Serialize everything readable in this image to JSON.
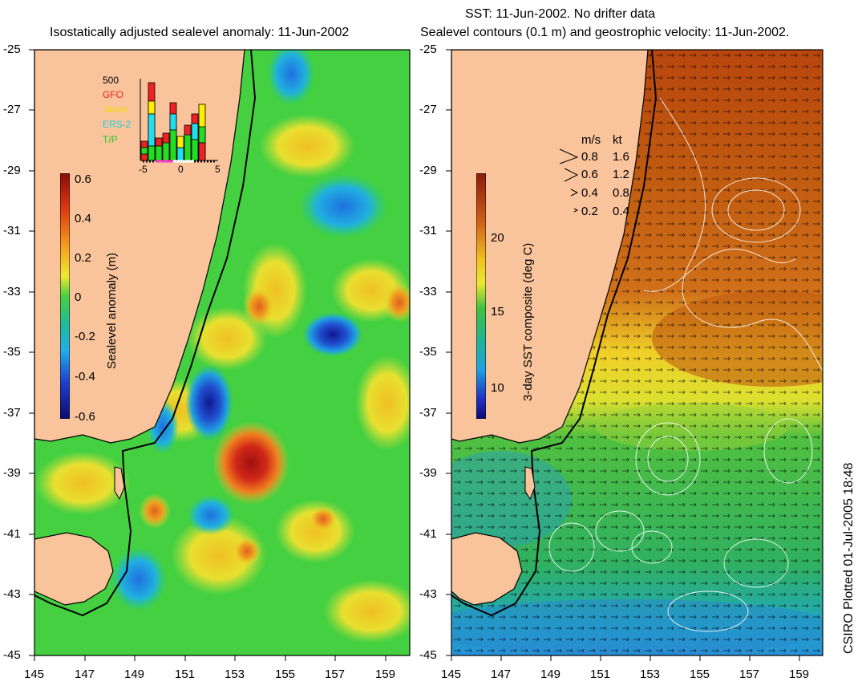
{
  "left_panel": {
    "title": "Isostatically adjusted sealevel anomaly: 11-Jun-2002",
    "colorbar_label": "Sealevel anomaly (m)",
    "colorbar_ticks": [
      "0.6",
      "0.4",
      "0.2",
      "0",
      "-0.2",
      "-0.4",
      "-0.6"
    ],
    "inset": {
      "max_label": "500",
      "satellites": [
        {
          "name": "GFO",
          "color": "#ee2222"
        },
        {
          "name": "Jason",
          "color": "#ffee00"
        },
        {
          "name": "ERS-2",
          "color": "#22ddee"
        },
        {
          "name": "T/P",
          "color": "#22dd22"
        }
      ],
      "x_ticks": [
        "-5",
        "0",
        "5"
      ]
    }
  },
  "right_panel": {
    "title_line1": "SST: 11-Jun-2002. No drifter data",
    "title_line2": "Sealevel contours (0.1 m) and geostrophic velocity: 11-Jun-2002.",
    "colorbar_label": "3-day SST composite (deg C)",
    "colorbar_ticks": [
      "20",
      "15",
      "10"
    ],
    "velocity_legend": {
      "header_ms": "m/s",
      "header_kt": "kt",
      "rows": [
        {
          "ms": "0.8",
          "kt": "1.6"
        },
        {
          "ms": "0.6",
          "kt": "1.2"
        },
        {
          "ms": "0.4",
          "kt": "0.8"
        },
        {
          "ms": "0.2",
          "kt": "0.4"
        }
      ]
    }
  },
  "axes": {
    "y_ticks": [
      "-25",
      "-27",
      "-29",
      "-31",
      "-33",
      "-35",
      "-37",
      "-39",
      "-41",
      "-43",
      "-45"
    ],
    "x_ticks": [
      "145",
      "147",
      "149",
      "151",
      "153",
      "155",
      "157",
      "159"
    ]
  },
  "credit": "CSIRO Plotted 01-Jul-2005 18:48",
  "colors": {
    "land": "#f9c49b",
    "coast": "#000000"
  }
}
